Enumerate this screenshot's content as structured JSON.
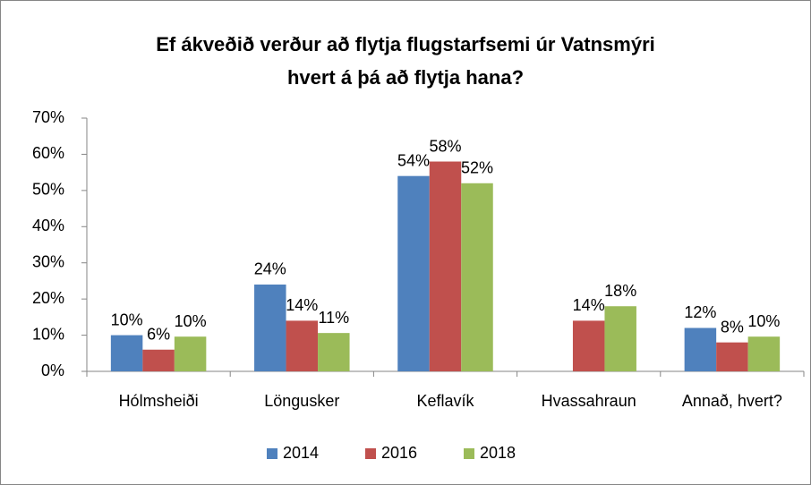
{
  "chart_data": {
    "type": "bar",
    "title": [
      "Ef ákveðið verður að flytja flugstarfsemi úr Vatnsmýri",
      "hvert á þá að flytja hana?"
    ],
    "categories": [
      "Hólmsheiði",
      "Löngusker",
      "Keflavík",
      "Hvassahraun",
      "Annað, hvert?"
    ],
    "series": [
      {
        "name": "2014",
        "color": "#4f81bd",
        "values": [
          10,
          24,
          54,
          null,
          12
        ],
        "value_labels": [
          "10%",
          "24%",
          "54%",
          null,
          "12%"
        ]
      },
      {
        "name": "2016",
        "color": "#c0504d",
        "values": [
          6,
          14,
          58,
          14,
          8
        ],
        "value_labels": [
          "6%",
          "14%",
          "58%",
          "14%",
          "8%"
        ]
      },
      {
        "name": "2018",
        "color": "#9bbb59",
        "values": [
          9.6,
          10.6,
          52,
          18,
          9.6
        ],
        "value_labels": [
          "10%",
          "11%",
          "52%",
          "18%",
          "10%"
        ]
      }
    ],
    "ylim": [
      0,
      70
    ],
    "yticks": [
      {
        "value": 0,
        "label": "0%"
      },
      {
        "value": 10,
        "label": "10%"
      },
      {
        "value": 20,
        "label": "20%"
      },
      {
        "value": 30,
        "label": "30%"
      },
      {
        "value": 40,
        "label": "40%"
      },
      {
        "value": 50,
        "label": "50%"
      },
      {
        "value": 60,
        "label": "60%"
      },
      {
        "value": 70,
        "label": "70%"
      }
    ],
    "grid": false,
    "legend": "bottom"
  }
}
